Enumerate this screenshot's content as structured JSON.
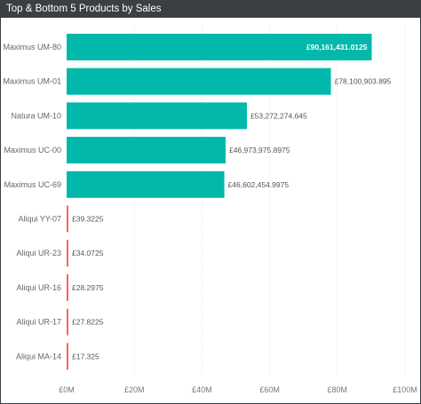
{
  "visual": {
    "title": "Top & Bottom 5 Products by Sales"
  },
  "chart_data": {
    "type": "bar",
    "orientation": "horizontal",
    "title": "Top & Bottom 5 Products by Sales",
    "xlabel": "",
    "ylabel": "",
    "xlim": [
      0,
      100000000
    ],
    "grid": true,
    "categories": [
      "Maximus UM-80",
      "Maximus UM-01",
      "Natura UM-10",
      "Maximus UC-00",
      "Maximus UC-69",
      "Aliqui YY-07",
      "Aliqui UR-23",
      "Aliqui UR-16",
      "Aliqui UR-17",
      "Aliqui MA-14"
    ],
    "values": [
      90161431.0125,
      78100903.895,
      53272274.645,
      46973975.8975,
      46602454.9975,
      39.3225,
      34.0725,
      28.2975,
      27.8225,
      17.325
    ],
    "data_labels": [
      "£90,161,431.0125",
      "£78,100,903.895",
      "£53,272,274.645",
      "£46,973,975.8975",
      "£46,602,454.9975",
      "£39.3225",
      "£34.0725",
      "£28.2975",
      "£27.8225",
      "£17.325"
    ],
    "x_ticks": [
      0,
      20000000,
      40000000,
      60000000,
      80000000,
      100000000
    ],
    "x_tick_labels": [
      "£0M",
      "£20M",
      "£40M",
      "£60M",
      "£80M",
      "£100M"
    ],
    "colors": {
      "top": "#01b8aa",
      "bottom": "#fd625e",
      "header_bg": "#3a3f44",
      "header_text": "#ffffff"
    }
  }
}
